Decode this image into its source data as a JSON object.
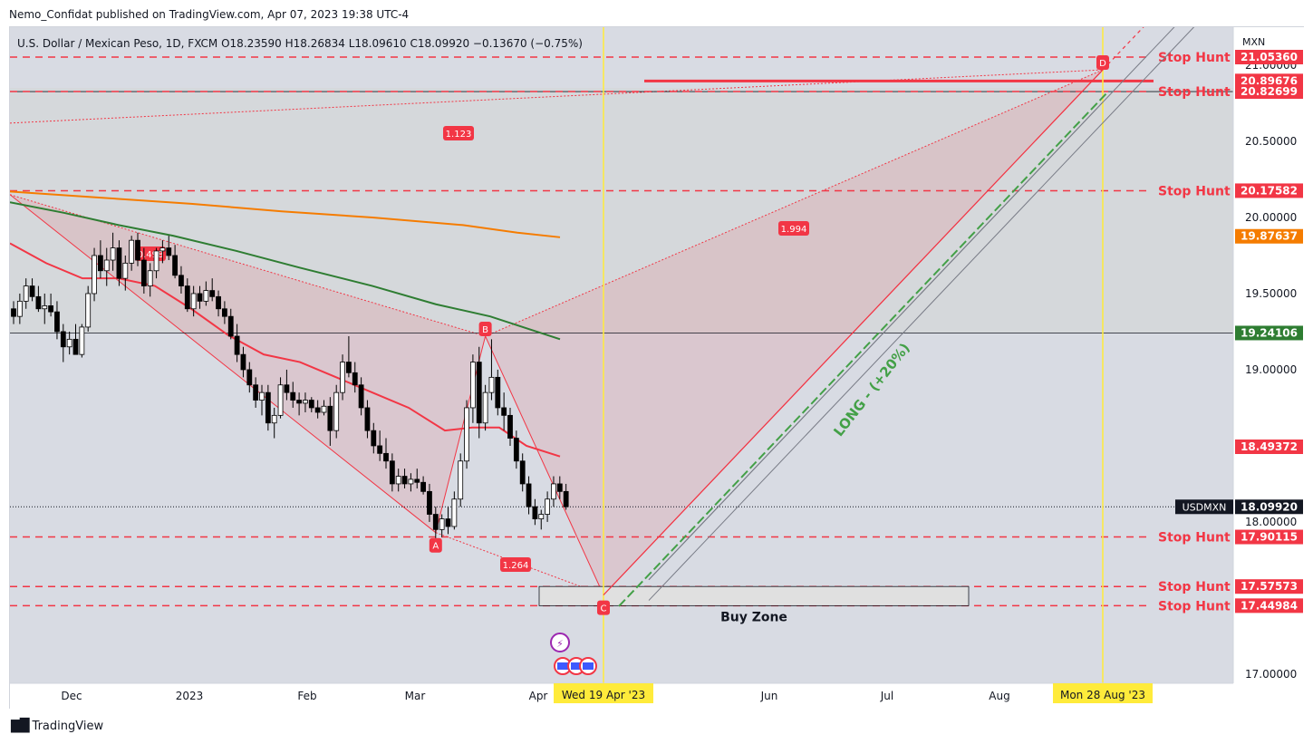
{
  "header": {
    "published": "Nemo_Confidat published on TradingView.com, Apr 07, 2023 19:38 UTC-4",
    "ohlc": "U.S. Dollar / Mexican Peso, 1D, FXCM  O18.23590  H18.26834  L18.09610  C18.09920  −0.13670 (−0.75%)",
    "currency": "MXN"
  },
  "footer": {
    "logo_text": "TradingView"
  },
  "colors": {
    "up": "#ffffff",
    "down": "#000000",
    "ema50": "#f23645",
    "ema100": "#2e7d32",
    "ema200": "#f57c00",
    "stop": "#f23645",
    "long": "#43a047",
    "vline": "#ffeb3b",
    "last": "#131722",
    "level_green": "#2e7d32"
  },
  "chart_data": {
    "type": "candlestick",
    "symbol": "USDMXN",
    "timeframe": "1D",
    "ylim": [
      16.94,
      21.25
    ],
    "y_ticks": [
      "21.00000",
      "20.50000",
      "20.00000",
      "19.50000",
      "19.00000",
      "18.00000",
      "17.00000"
    ],
    "x_labels": [
      "Dec",
      "2023",
      "Feb",
      "Mar",
      "Apr",
      "Jun",
      "Jul",
      "Aug"
    ],
    "date_markers": [
      {
        "label": "Wed 19 Apr '23"
      },
      {
        "label": "Mon 28 Aug '23"
      }
    ],
    "price_labels": [
      {
        "text": "21.05360",
        "value": 21.0536,
        "color": "#f23645"
      },
      {
        "text": "20.89676",
        "value": 20.89676,
        "color": "#f23645"
      },
      {
        "text": "20.82699",
        "value": 20.82699,
        "color": "#f23645"
      },
      {
        "text": "20.17582",
        "value": 20.17582,
        "color": "#f23645"
      },
      {
        "text": "19.87637",
        "value": 19.87637,
        "color": "#f57c00"
      },
      {
        "text": "19.24106",
        "value": 19.24106,
        "color": "#2e7d32"
      },
      {
        "text": "18.49372",
        "value": 18.49372,
        "color": "#f23645"
      },
      {
        "text": "18.09920",
        "value": 18.0992,
        "color": "#131722",
        "tag": "USDMXN"
      },
      {
        "text": "17.90115",
        "value": 17.90115,
        "color": "#f23645"
      },
      {
        "text": "17.57573",
        "value": 17.57573,
        "color": "#f23645"
      },
      {
        "text": "17.44984",
        "value": 17.44984,
        "color": "#f23645"
      }
    ],
    "stop_hunt_levels": [
      21.0536,
      20.82699,
      20.17582,
      17.90115,
      17.57573,
      17.44984
    ],
    "stop_hunt_label": "Stop Hunt",
    "horizontal_levels": [
      20.82699,
      19.24106
    ],
    "target_line": 20.89676,
    "pattern": {
      "points": [
        {
          "label": "A",
          "value": 17.93
        },
        {
          "label": "B",
          "value": 19.22
        },
        {
          "label": "C",
          "value": 17.52
        },
        {
          "label": "D",
          "value": 20.97
        }
      ],
      "ratios": [
        "0.498",
        "1.123",
        "1.994",
        "1.264"
      ]
    },
    "buy_zone": {
      "label": "Buy Zone",
      "low": 17.44984,
      "high": 17.57573
    },
    "long_text": "LONG - (+20%)",
    "candles": [
      [
        19.4,
        19.45,
        19.3,
        19.35
      ],
      [
        19.35,
        19.5,
        19.3,
        19.45
      ],
      [
        19.45,
        19.6,
        19.4,
        19.55
      ],
      [
        19.55,
        19.6,
        19.45,
        19.48
      ],
      [
        19.48,
        19.55,
        19.38,
        19.4
      ],
      [
        19.4,
        19.5,
        19.3,
        19.42
      ],
      [
        19.42,
        19.5,
        19.35,
        19.38
      ],
      [
        19.38,
        19.45,
        19.2,
        19.25
      ],
      [
        19.25,
        19.3,
        19.05,
        19.15
      ],
      [
        19.15,
        19.25,
        19.1,
        19.2
      ],
      [
        19.2,
        19.3,
        19.12,
        19.1
      ],
      [
        19.1,
        19.3,
        19.08,
        19.28
      ],
      [
        19.28,
        19.55,
        19.25,
        19.5
      ],
      [
        19.5,
        19.8,
        19.45,
        19.75
      ],
      [
        19.75,
        19.85,
        19.6,
        19.65
      ],
      [
        19.65,
        19.8,
        19.55,
        19.72
      ],
      [
        19.72,
        19.9,
        19.65,
        19.8
      ],
      [
        19.8,
        19.85,
        19.55,
        19.6
      ],
      [
        19.6,
        19.75,
        19.52,
        19.7
      ],
      [
        19.7,
        19.88,
        19.65,
        19.85
      ],
      [
        19.85,
        19.9,
        19.68,
        19.72
      ],
      [
        19.72,
        19.8,
        19.5,
        19.55
      ],
      [
        19.55,
        19.7,
        19.48,
        19.65
      ],
      [
        19.65,
        19.8,
        19.6,
        19.78
      ],
      [
        19.78,
        19.85,
        19.7,
        19.8
      ],
      [
        19.8,
        19.88,
        19.72,
        19.75
      ],
      [
        19.75,
        19.82,
        19.6,
        19.62
      ],
      [
        19.62,
        19.68,
        19.5,
        19.55
      ],
      [
        19.55,
        19.6,
        19.38,
        19.4
      ],
      [
        19.4,
        19.55,
        19.35,
        19.5
      ],
      [
        19.5,
        19.55,
        19.4,
        19.45
      ],
      [
        19.45,
        19.58,
        19.42,
        19.52
      ],
      [
        19.52,
        19.6,
        19.45,
        19.48
      ],
      [
        19.48,
        19.52,
        19.35,
        19.4
      ],
      [
        19.4,
        19.45,
        19.3,
        19.35
      ],
      [
        19.35,
        19.4,
        19.2,
        19.22
      ],
      [
        19.22,
        19.3,
        19.05,
        19.1
      ],
      [
        19.1,
        19.15,
        18.95,
        19.0
      ],
      [
        19.0,
        19.05,
        18.85,
        18.9
      ],
      [
        18.9,
        18.95,
        18.75,
        18.8
      ],
      [
        18.8,
        18.9,
        18.7,
        18.85
      ],
      [
        18.85,
        18.9,
        18.6,
        18.65
      ],
      [
        18.65,
        18.75,
        18.55,
        18.7
      ],
      [
        18.7,
        18.95,
        18.68,
        18.9
      ],
      [
        18.9,
        19.0,
        18.8,
        18.85
      ],
      [
        18.85,
        18.92,
        18.75,
        18.8
      ],
      [
        18.8,
        18.85,
        18.7,
        18.78
      ],
      [
        18.78,
        18.85,
        18.72,
        18.8
      ],
      [
        18.8,
        18.82,
        18.72,
        18.75
      ],
      [
        18.75,
        18.8,
        18.68,
        18.72
      ],
      [
        18.72,
        18.8,
        18.7,
        18.76
      ],
      [
        18.76,
        18.82,
        18.5,
        18.6
      ],
      [
        18.6,
        18.9,
        18.55,
        18.85
      ],
      [
        18.85,
        19.1,
        18.8,
        19.05
      ],
      [
        19.05,
        19.22,
        18.95,
        18.98
      ],
      [
        18.98,
        19.05,
        18.85,
        18.9
      ],
      [
        18.9,
        18.95,
        18.7,
        18.75
      ],
      [
        18.75,
        18.8,
        18.55,
        18.6
      ],
      [
        18.6,
        18.65,
        18.45,
        18.5
      ],
      [
        18.5,
        18.6,
        18.4,
        18.45
      ],
      [
        18.45,
        18.55,
        18.35,
        18.4
      ],
      [
        18.4,
        18.45,
        18.2,
        18.25
      ],
      [
        18.25,
        18.35,
        18.2,
        18.3
      ],
      [
        18.3,
        18.35,
        18.22,
        18.25
      ],
      [
        18.25,
        18.32,
        18.2,
        18.28
      ],
      [
        18.28,
        18.35,
        18.22,
        18.26
      ],
      [
        18.26,
        18.3,
        18.18,
        18.2
      ],
      [
        18.2,
        18.25,
        18.0,
        18.05
      ],
      [
        18.05,
        18.1,
        17.88,
        17.95
      ],
      [
        17.95,
        18.05,
        17.9,
        18.02
      ],
      [
        18.02,
        18.1,
        17.92,
        17.97
      ],
      [
        17.97,
        18.2,
        17.95,
        18.15
      ],
      [
        18.15,
        18.45,
        18.1,
        18.4
      ],
      [
        18.4,
        18.8,
        18.35,
        18.75
      ],
      [
        18.75,
        19.1,
        18.65,
        19.05
      ],
      [
        19.05,
        19.15,
        18.55,
        18.65
      ],
      [
        18.65,
        18.9,
        18.6,
        18.85
      ],
      [
        18.85,
        19.2,
        18.8,
        18.95
      ],
      [
        18.95,
        19.0,
        18.7,
        18.75
      ],
      [
        18.75,
        18.85,
        18.6,
        18.7
      ],
      [
        18.7,
        18.75,
        18.5,
        18.55
      ],
      [
        18.55,
        18.6,
        18.35,
        18.4
      ],
      [
        18.4,
        18.45,
        18.2,
        18.25
      ],
      [
        18.25,
        18.3,
        18.05,
        18.1
      ],
      [
        18.1,
        18.15,
        17.98,
        18.02
      ],
      [
        18.02,
        18.08,
        17.95,
        18.05
      ],
      [
        18.05,
        18.2,
        18.0,
        18.15
      ],
      [
        18.15,
        18.3,
        18.1,
        18.25
      ],
      [
        18.25,
        18.3,
        18.15,
        18.2
      ],
      [
        18.2,
        18.25,
        18.08,
        18.1
      ]
    ]
  }
}
